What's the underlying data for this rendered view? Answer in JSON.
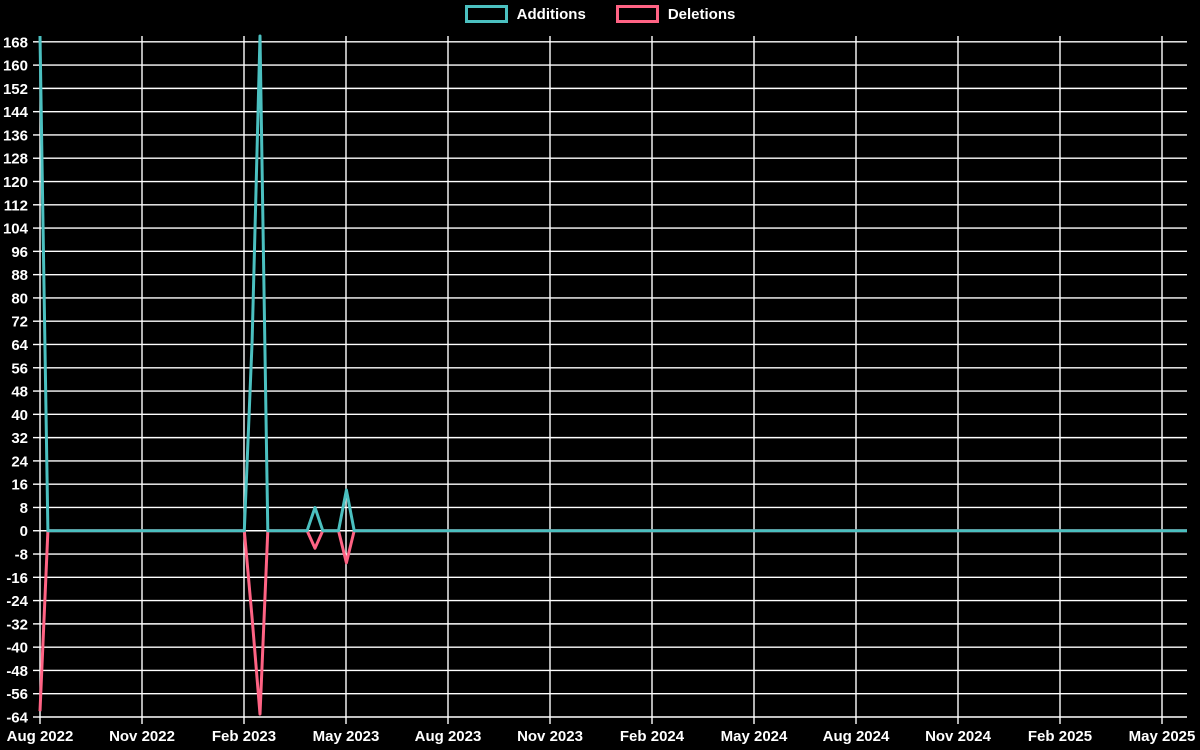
{
  "page": {
    "background": "#000000",
    "text_color": "#ffffff",
    "grid_color": "#ffffff"
  },
  "legend": {
    "items": [
      {
        "label": "Additions",
        "color": "#4bc0c0"
      },
      {
        "label": "Deletions",
        "color": "#ff6384"
      }
    ]
  },
  "chart_data": {
    "type": "line",
    "title": "",
    "xlabel": "",
    "ylabel": "",
    "grid": true,
    "legend_position": "top-center",
    "x_axis": {
      "unit": "weeks_since_first_point",
      "total_weeks": 146,
      "tick_every_months": 3,
      "tick_labels": [
        "Aug 2022",
        "Nov 2022",
        "Feb 2023",
        "May 2023",
        "Aug 2023",
        "Nov 2023",
        "Feb 2024",
        "May 2024",
        "Aug 2024",
        "Nov 2024",
        "Feb 2025",
        "May 2025"
      ]
    },
    "y_axis": {
      "min": -64,
      "max": 170,
      "first_tick": -64,
      "last_tick": 168,
      "tick_step": 8
    },
    "series": [
      {
        "name": "Additions",
        "color": "#4bc0c0",
        "line_width": 3,
        "points": [
          [
            0,
            170
          ],
          [
            1,
            0
          ],
          [
            26,
            0
          ],
          [
            27,
            65
          ],
          [
            28,
            170
          ],
          [
            29,
            0
          ],
          [
            34,
            0
          ],
          [
            35,
            8
          ],
          [
            36,
            0
          ],
          [
            38,
            0
          ],
          [
            39,
            14
          ],
          [
            40,
            0
          ],
          [
            146,
            0
          ]
        ]
      },
      {
        "name": "Deletions",
        "color": "#ff6384",
        "line_width": 3,
        "points": [
          [
            0,
            -62
          ],
          [
            1,
            0
          ],
          [
            26,
            0
          ],
          [
            27,
            -30
          ],
          [
            28,
            -63
          ],
          [
            29,
            0
          ],
          [
            34,
            0
          ],
          [
            35,
            -6
          ],
          [
            36,
            0
          ],
          [
            38,
            0
          ],
          [
            39,
            -11
          ],
          [
            40,
            0
          ],
          [
            146,
            0
          ]
        ]
      }
    ]
  }
}
